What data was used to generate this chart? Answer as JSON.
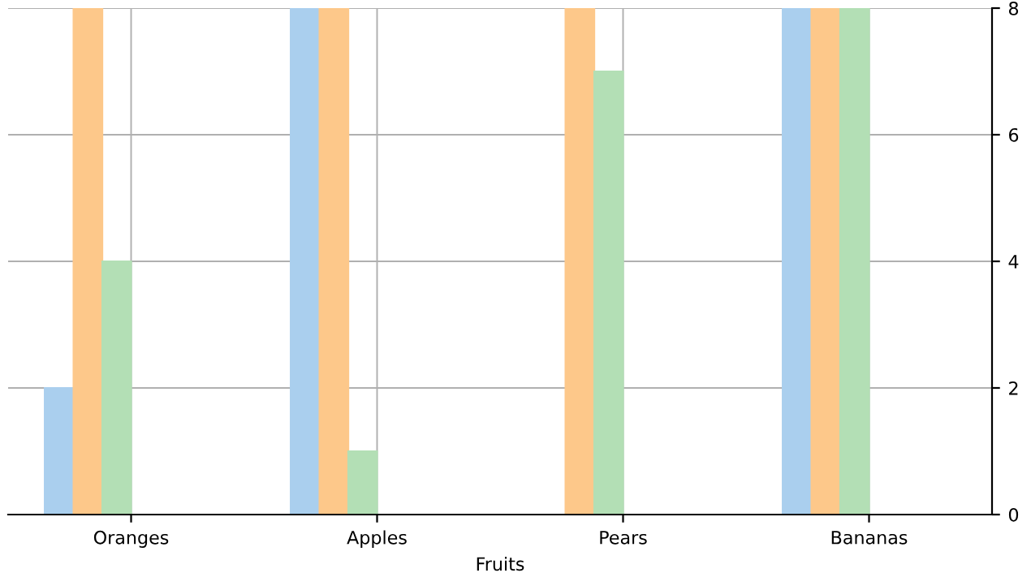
{
  "chart_data": {
    "type": "bar",
    "xlabel": "Fruits",
    "categories": [
      "Oranges",
      "Apples",
      "Pears",
      "Bananas"
    ],
    "series": [
      {
        "color": "#aacfee",
        "values": [
          2,
          8,
          0,
          8
        ]
      },
      {
        "color": "#fdc88a",
        "values": [
          8,
          8,
          8,
          8
        ]
      },
      {
        "color": "#b3dfb5",
        "values": [
          4,
          1,
          7,
          8
        ]
      }
    ],
    "ylim": [
      0,
      8
    ],
    "yticks": [
      0,
      2,
      4,
      6,
      8
    ],
    "grid": true,
    "legend": false
  }
}
